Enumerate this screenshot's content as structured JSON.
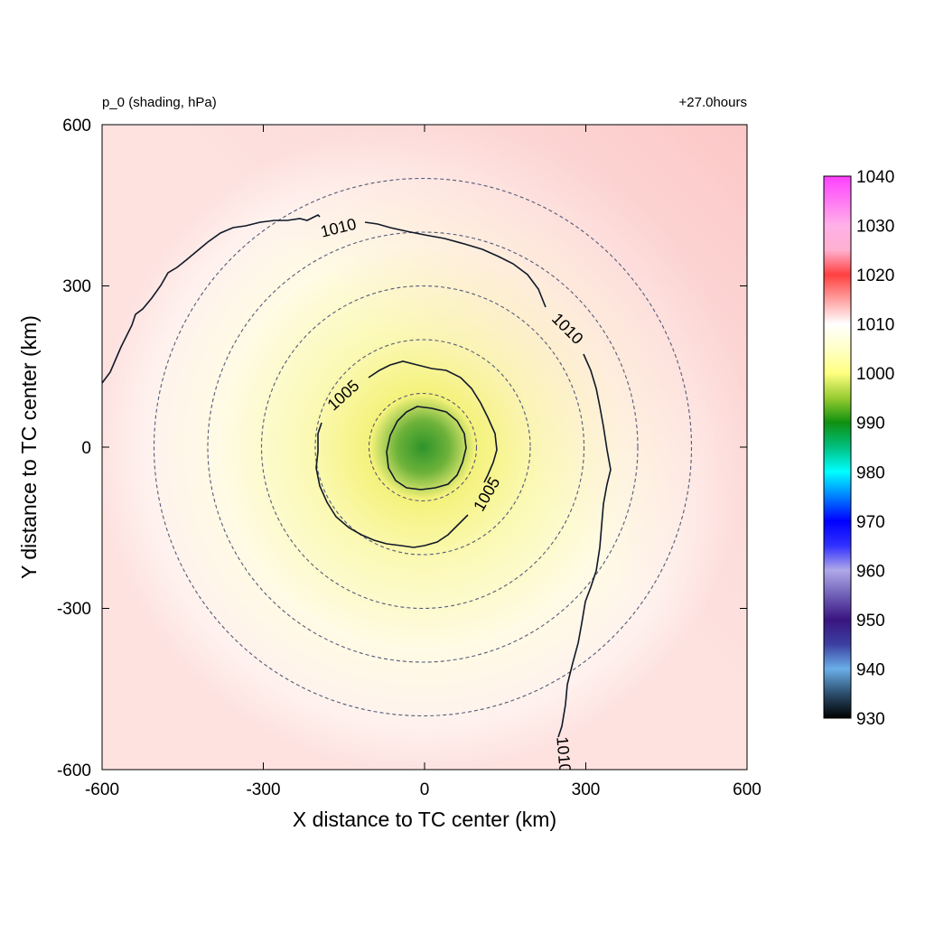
{
  "chart_data": {
    "type": "heatmap",
    "title_left": "p_0 (shading, hPa)",
    "title_right": "+27.0hours",
    "xlabel": "X distance to TC center (km)",
    "ylabel": "Y distance to TC center (km)",
    "xlim": [
      -600,
      600
    ],
    "ylim": [
      -600,
      600
    ],
    "xticks": [
      -600,
      -300,
      0,
      300,
      600
    ],
    "yticks": [
      -600,
      -300,
      0,
      300,
      600
    ],
    "xtick_labels": [
      "-600",
      "-300",
      "0",
      "300",
      "600"
    ],
    "ytick_labels": [
      "-600",
      "-300",
      "0",
      "300",
      "600"
    ],
    "field": "surface pressure",
    "units": "hPa",
    "center_min_value": 992,
    "colorbar": {
      "ticks": [
        930,
        940,
        950,
        960,
        970,
        980,
        990,
        1000,
        1010,
        1020,
        1030,
        1040
      ],
      "tick_labels": [
        "930",
        "940",
        "950",
        "960",
        "970",
        "980",
        "990",
        "1000",
        "1010",
        "1020",
        "1030",
        "1040"
      ],
      "colors": [
        {
          "value": 930,
          "color": "#000000"
        },
        {
          "value": 935,
          "color": "#2c4e6e"
        },
        {
          "value": 940,
          "color": "#6aaee8"
        },
        {
          "value": 945,
          "color": "#3b3fa0"
        },
        {
          "value": 950,
          "color": "#3a1480"
        },
        {
          "value": 955,
          "color": "#7060b8"
        },
        {
          "value": 960,
          "color": "#b0a8e8"
        },
        {
          "value": 965,
          "color": "#3030ff"
        },
        {
          "value": 970,
          "color": "#0000ff"
        },
        {
          "value": 975,
          "color": "#0080ff"
        },
        {
          "value": 980,
          "color": "#00ffff"
        },
        {
          "value": 985,
          "color": "#00c080"
        },
        {
          "value": 990,
          "color": "#109010"
        },
        {
          "value": 995,
          "color": "#98cc30"
        },
        {
          "value": 1000,
          "color": "#ffff80"
        },
        {
          "value": 1005,
          "color": "#ffffc8"
        },
        {
          "value": 1010,
          "color": "#ffffff"
        },
        {
          "value": 1015,
          "color": "#ffa0a0"
        },
        {
          "value": 1020,
          "color": "#ff4040"
        },
        {
          "value": 1025,
          "color": "#ffb0d0"
        },
        {
          "value": 1030,
          "color": "#ffb0e8"
        },
        {
          "value": 1040,
          "color": "#ff40ff"
        }
      ]
    },
    "contours": [
      {
        "level": 1010,
        "label": "1010"
      },
      {
        "level": 1005,
        "label": "1005"
      }
    ],
    "range_rings_km": [
      100,
      200,
      300,
      400,
      500
    ]
  }
}
